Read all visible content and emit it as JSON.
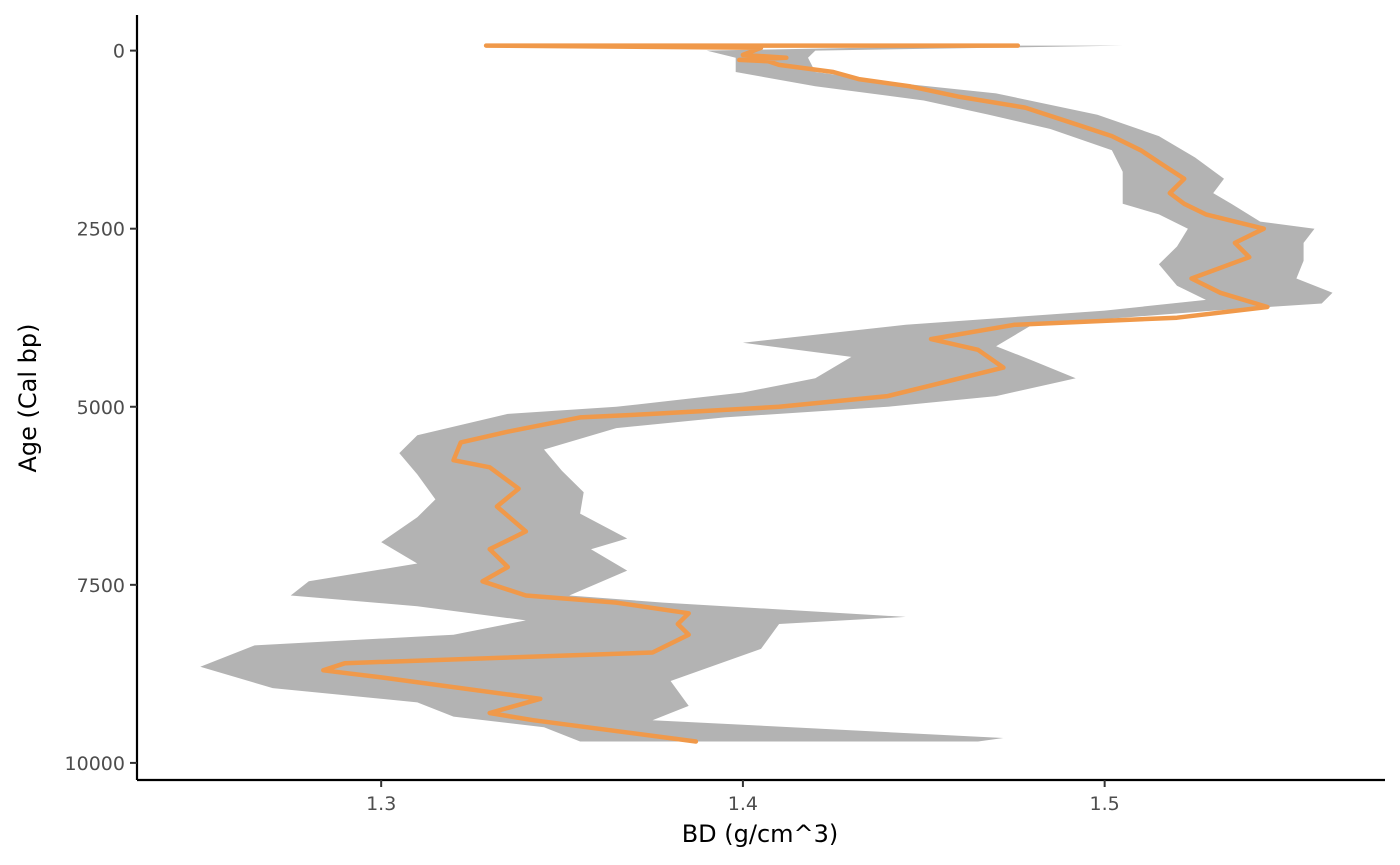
{
  "chart_data": {
    "type": "area",
    "title": "",
    "xlabel": "BD (g/cm^3)",
    "ylabel": "Age (Cal bp)",
    "xlim": [
      1.2325,
      1.5775
    ],
    "ylim": [
      10240,
      -500
    ],
    "y_reversed": true,
    "grid": false,
    "legend": "none",
    "x_ticks": [
      1.3,
      1.4,
      1.5
    ],
    "x_tick_labels": [
      "1.3",
      "1.4",
      "1.5"
    ],
    "y_ticks": [
      0,
      2500,
      5000,
      7500,
      10000
    ],
    "y_tick_labels": [
      "0",
      "2500",
      "5000",
      "7500",
      "10000"
    ],
    "colors": {
      "median_line": "#f0994a",
      "ribbon": "#b3b3b3",
      "axis": "#000000"
    },
    "series": [
      {
        "kind": "median",
        "points": [
          [
            1.476,
            -70
          ],
          [
            1.329,
            -70
          ],
          [
            1.405,
            -40
          ],
          [
            1.4,
            60
          ],
          [
            1.412,
            100
          ],
          [
            1.399,
            130
          ],
          [
            1.407,
            150
          ],
          [
            1.41,
            200
          ],
          [
            1.425,
            300
          ],
          [
            1.432,
            400
          ],
          [
            1.446,
            500
          ],
          [
            1.46,
            650
          ],
          [
            1.478,
            800
          ],
          [
            1.49,
            1000
          ],
          [
            1.502,
            1200
          ],
          [
            1.51,
            1400
          ],
          [
            1.516,
            1600
          ],
          [
            1.522,
            1800
          ],
          [
            1.518,
            2000
          ],
          [
            1.522,
            2150
          ],
          [
            1.528,
            2300
          ],
          [
            1.544,
            2500
          ],
          [
            1.536,
            2700
          ],
          [
            1.54,
            2900
          ],
          [
            1.524,
            3200
          ],
          [
            1.532,
            3400
          ],
          [
            1.545,
            3600
          ],
          [
            1.52,
            3750
          ],
          [
            1.475,
            3850
          ],
          [
            1.452,
            4050
          ],
          [
            1.465,
            4200
          ],
          [
            1.472,
            4450
          ],
          [
            1.452,
            4700
          ],
          [
            1.44,
            4850
          ],
          [
            1.41,
            5000
          ],
          [
            1.375,
            5100
          ],
          [
            1.355,
            5150
          ],
          [
            1.335,
            5350
          ],
          [
            1.322,
            5500
          ],
          [
            1.32,
            5750
          ],
          [
            1.33,
            5850
          ],
          [
            1.338,
            6150
          ],
          [
            1.332,
            6400
          ],
          [
            1.34,
            6750
          ],
          [
            1.33,
            7000
          ],
          [
            1.335,
            7250
          ],
          [
            1.328,
            7450
          ],
          [
            1.34,
            7650
          ],
          [
            1.365,
            7750
          ],
          [
            1.385,
            7900
          ],
          [
            1.382,
            8050
          ],
          [
            1.385,
            8200
          ],
          [
            1.375,
            8450
          ],
          [
            1.29,
            8600
          ],
          [
            1.284,
            8700
          ],
          [
            1.3,
            8800
          ],
          [
            1.344,
            9100
          ],
          [
            1.33,
            9300
          ],
          [
            1.342,
            9400
          ],
          [
            1.387,
            9700
          ]
        ]
      },
      {
        "kind": "ribbon",
        "upper": [
          [
            1.505,
            -70
          ],
          [
            1.42,
            0
          ],
          [
            1.418,
            100
          ],
          [
            1.42,
            300
          ],
          [
            1.442,
            450
          ],
          [
            1.47,
            600
          ],
          [
            1.498,
            900
          ],
          [
            1.515,
            1200
          ],
          [
            1.525,
            1500
          ],
          [
            1.533,
            1800
          ],
          [
            1.53,
            2000
          ],
          [
            1.535,
            2150
          ],
          [
            1.543,
            2400
          ],
          [
            1.558,
            2500
          ],
          [
            1.555,
            2700
          ],
          [
            1.555,
            2950
          ],
          [
            1.553,
            3200
          ],
          [
            1.563,
            3400
          ],
          [
            1.56,
            3550
          ],
          [
            1.53,
            3650
          ],
          [
            1.48,
            3850
          ],
          [
            1.47,
            4150
          ],
          [
            1.48,
            4350
          ],
          [
            1.492,
            4600
          ],
          [
            1.47,
            4850
          ],
          [
            1.44,
            5000
          ],
          [
            1.395,
            5150
          ],
          [
            1.365,
            5300
          ],
          [
            1.345,
            5600
          ],
          [
            1.35,
            5900
          ],
          [
            1.356,
            6200
          ],
          [
            1.355,
            6500
          ],
          [
            1.368,
            6850
          ],
          [
            1.358,
            7000
          ],
          [
            1.368,
            7300
          ],
          [
            1.352,
            7650
          ],
          [
            1.378,
            7750
          ],
          [
            1.445,
            7950
          ],
          [
            1.41,
            8050
          ],
          [
            1.405,
            8400
          ],
          [
            1.38,
            8850
          ],
          [
            1.385,
            9200
          ],
          [
            1.375,
            9400
          ],
          [
            1.472,
            9650
          ]
        ],
        "lower": [
          [
            1.465,
            -70
          ],
          [
            1.39,
            0
          ],
          [
            1.398,
            100
          ],
          [
            1.398,
            300
          ],
          [
            1.42,
            500
          ],
          [
            1.45,
            700
          ],
          [
            1.468,
            900
          ],
          [
            1.485,
            1100
          ],
          [
            1.502,
            1400
          ],
          [
            1.505,
            1700
          ],
          [
            1.505,
            1900
          ],
          [
            1.505,
            2150
          ],
          [
            1.515,
            2300
          ],
          [
            1.523,
            2500
          ],
          [
            1.52,
            2750
          ],
          [
            1.515,
            3000
          ],
          [
            1.52,
            3300
          ],
          [
            1.528,
            3500
          ],
          [
            1.5,
            3650
          ],
          [
            1.445,
            3850
          ],
          [
            1.4,
            4100
          ],
          [
            1.43,
            4300
          ],
          [
            1.42,
            4600
          ],
          [
            1.4,
            4800
          ],
          [
            1.365,
            5000
          ],
          [
            1.335,
            5100
          ],
          [
            1.31,
            5400
          ],
          [
            1.305,
            5650
          ],
          [
            1.31,
            5950
          ],
          [
            1.315,
            6300
          ],
          [
            1.31,
            6550
          ],
          [
            1.3,
            6900
          ],
          [
            1.31,
            7200
          ],
          [
            1.28,
            7450
          ],
          [
            1.275,
            7650
          ],
          [
            1.31,
            7800
          ],
          [
            1.34,
            8000
          ],
          [
            1.32,
            8200
          ],
          [
            1.265,
            8350
          ],
          [
            1.25,
            8650
          ],
          [
            1.27,
            8950
          ],
          [
            1.31,
            9150
          ],
          [
            1.32,
            9350
          ],
          [
            1.345,
            9500
          ],
          [
            1.355,
            9700
          ],
          [
            1.465,
            9700
          ]
        ]
      }
    ]
  }
}
